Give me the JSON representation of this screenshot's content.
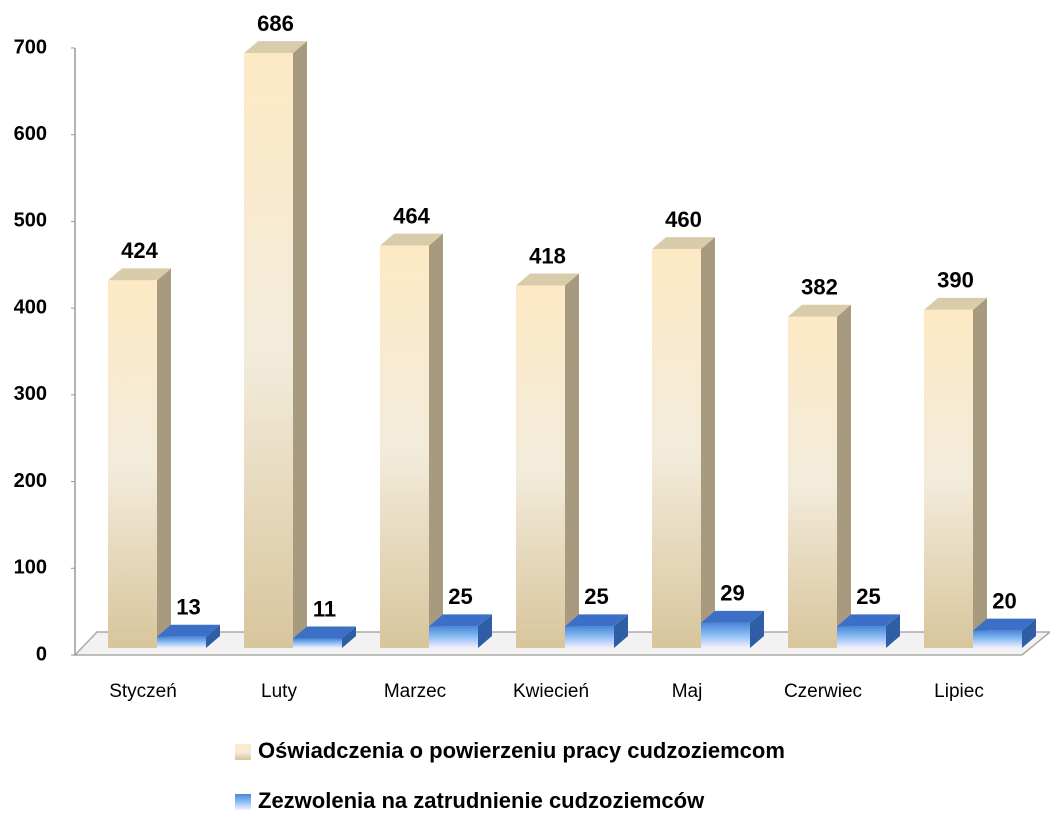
{
  "chart_data": {
    "type": "bar3d",
    "categories": [
      "Styczeń",
      "Luty",
      "Marzec",
      "Kwiecień",
      "Maj",
      "Czerwiec",
      "Lipiec"
    ],
    "series": [
      {
        "name": "Oświadczenia o powierzeniu pracy cudzoziemcom",
        "color": "#f3e6c8",
        "values": [
          424,
          686,
          464,
          418,
          460,
          382,
          390
        ]
      },
      {
        "name": "Zezwolenia na zatrudnienie cudzoziemców",
        "color": "#4a86d8",
        "values": [
          13,
          11,
          25,
          25,
          29,
          25,
          20
        ]
      }
    ],
    "ylim": [
      0,
      700
    ],
    "yticks": [
      0,
      100,
      200,
      300,
      400,
      500,
      600,
      700
    ],
    "legend": "bottom"
  }
}
